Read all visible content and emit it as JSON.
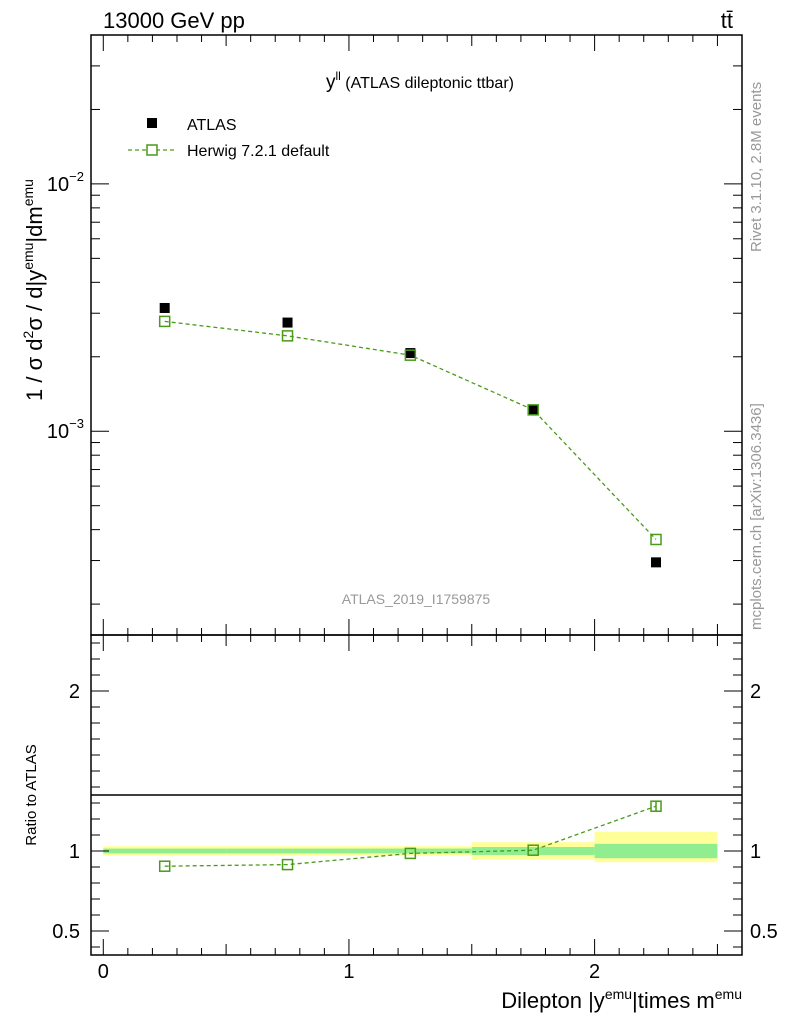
{
  "header": {
    "energy": "13000 GeV pp",
    "process": "tt̄",
    "side_top": "Rivet 3.1.10,  2.8M events",
    "side_bottom": "mcplots.cern.ch [arXiv:1306.3436]"
  },
  "colors": {
    "atlas": "#000000",
    "herwig": "#4a9a1a",
    "band_inner": "#90ee90",
    "band_outer": "#ffff99",
    "label_gray": "#999999"
  },
  "chart_data": [
    {
      "type": "scatter",
      "title_main": "y",
      "title_sup": "ll",
      "title_rest": " (ATLAS dileptonic ttbar)",
      "ylabel_main": "1 / σ d",
      "ylabel_sup1": "2",
      "ylabel_mid": "σ / d|y",
      "ylabel_sup2": "emu",
      "ylabel_mid2": "|dm",
      "ylabel_sup3": "emu",
      "watermark": "ATLAS_2019_I1759875",
      "yscale": "log",
      "ylim": [
        0.00015,
        0.04
      ],
      "xlim": [
        -0.05,
        2.6
      ],
      "y_tick_labels": [
        {
          "value": 0.01,
          "base": "10",
          "exp": "−2"
        },
        {
          "value": 0.001,
          "base": "10",
          "exp": "−3"
        }
      ],
      "legend": [
        {
          "name": "ATLAS",
          "marker": "filled-square"
        },
        {
          "name": "Herwig 7.2.1 default",
          "marker": "open-square-dashed"
        }
      ],
      "legend_position": "top-left",
      "series": [
        {
          "name": "ATLAS",
          "x": [
            0.25,
            0.75,
            1.25,
            1.75,
            2.25
          ],
          "y": [
            0.00315,
            0.00275,
            0.00207,
            0.00122,
            0.000295
          ]
        },
        {
          "name": "Herwig 7.2.1 default",
          "x": [
            0.25,
            0.75,
            1.25,
            1.75,
            2.25
          ],
          "y": [
            0.00278,
            0.00243,
            0.00203,
            0.00122,
            0.000365
          ]
        }
      ]
    },
    {
      "type": "line",
      "ylabel": "Ratio to ATLAS",
      "xlabel_main": "Dilepton |y",
      "xlabel_sup1": "emu",
      "xlabel_mid": "|times m",
      "xlabel_sup2": "emu",
      "ylim": [
        0.35,
        2.35
      ],
      "xlim": [
        -0.05,
        2.6
      ],
      "x_ticks": [
        {
          "value": 0,
          "label": "0"
        },
        {
          "value": 1,
          "label": "1"
        },
        {
          "value": 2,
          "label": "2"
        }
      ],
      "y_ticks": [
        {
          "value": 0.5,
          "label": "0.5"
        },
        {
          "value": 1,
          "label": "1"
        },
        {
          "value": 2,
          "label": "2"
        }
      ],
      "bands": [
        {
          "x0": 0.0,
          "x1": 0.5,
          "inner": [
            0.985,
            1.015
          ],
          "outer": [
            0.97,
            1.03
          ]
        },
        {
          "x0": 0.5,
          "x1": 1.0,
          "inner": [
            0.985,
            1.015
          ],
          "outer": [
            0.97,
            1.03
          ]
        },
        {
          "x0": 1.0,
          "x1": 1.5,
          "inner": [
            0.985,
            1.015
          ],
          "outer": [
            0.97,
            1.03
          ]
        },
        {
          "x0": 1.5,
          "x1": 2.0,
          "inner": [
            0.975,
            1.025
          ],
          "outer": [
            0.945,
            1.055
          ]
        },
        {
          "x0": 2.0,
          "x1": 2.5,
          "inner": [
            0.955,
            1.045
          ],
          "outer": [
            0.93,
            1.12
          ]
        }
      ],
      "series": [
        {
          "name": "Herwig 7.2.1 default",
          "x": [
            0.25,
            0.75,
            1.25,
            1.75,
            2.25
          ],
          "y": [
            0.905,
            0.915,
            0.985,
            1.005,
            1.28
          ],
          "err": [
            0.005,
            0.005,
            0.005,
            0.008,
            0.03
          ]
        }
      ]
    }
  ]
}
